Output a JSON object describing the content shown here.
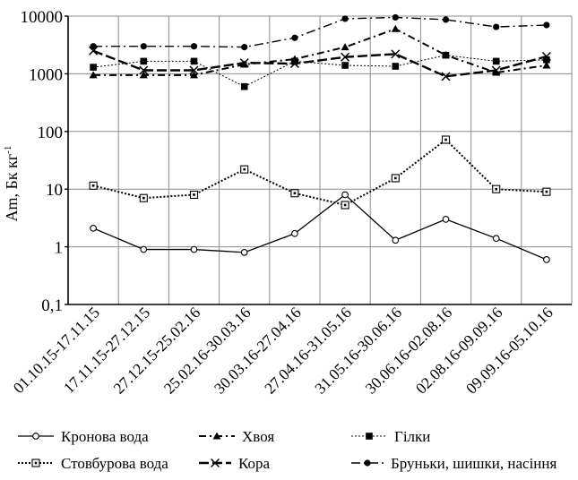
{
  "chart_data": {
    "type": "line",
    "ylabel": "Am, Бк кг",
    "ylabel_exponent": "-1",
    "xlabel": "",
    "y_scale": "log",
    "ylim": [
      0.1,
      10000
    ],
    "y_ticks": [
      "0,1",
      "1",
      "10",
      "100",
      "1000",
      "10000"
    ],
    "grid": true,
    "legend_position": "bottom",
    "categories": [
      "01.10.15-17.11.15",
      "17.11.15-27.12.15",
      "27.12.15-25.02.16",
      "25.02.16-30.03.16",
      "30.03.16-27.04.16",
      "27.04.16-31.05.16",
      "31.05.16-30.06.16",
      "30.06.16-02.08.16",
      "02.08.16-09.09.16",
      "09.09.16-05.10.16"
    ],
    "series": [
      {
        "name": "Кронова вода",
        "values": [
          2.1,
          0.9,
          0.9,
          0.8,
          1.7,
          8.0,
          1.3,
          3.0,
          1.4,
          0.6
        ]
      },
      {
        "name": "Хвоя",
        "values": [
          950,
          950,
          950,
          1450,
          1800,
          2900,
          6000,
          2100,
          1050,
          1400
        ]
      },
      {
        "name": "Гілки",
        "values": [
          1300,
          1650,
          1650,
          600,
          1650,
          1400,
          1350,
          2100,
          1650,
          1750
        ]
      },
      {
        "name": "Стовбурова вода",
        "values": [
          11.5,
          7.0,
          8.0,
          22.0,
          8.5,
          5.3,
          15.5,
          72.0,
          10.0,
          9.0
        ]
      },
      {
        "name": "Кора",
        "values": [
          2500,
          1150,
          1150,
          1550,
          1500,
          1950,
          2200,
          900,
          1150,
          2000
        ]
      },
      {
        "name": "Бруньки, шишки, насіння",
        "values": [
          3000,
          3000,
          3000,
          2900,
          4200,
          9000,
          9500,
          8700,
          6500,
          7000
        ]
      }
    ]
  }
}
